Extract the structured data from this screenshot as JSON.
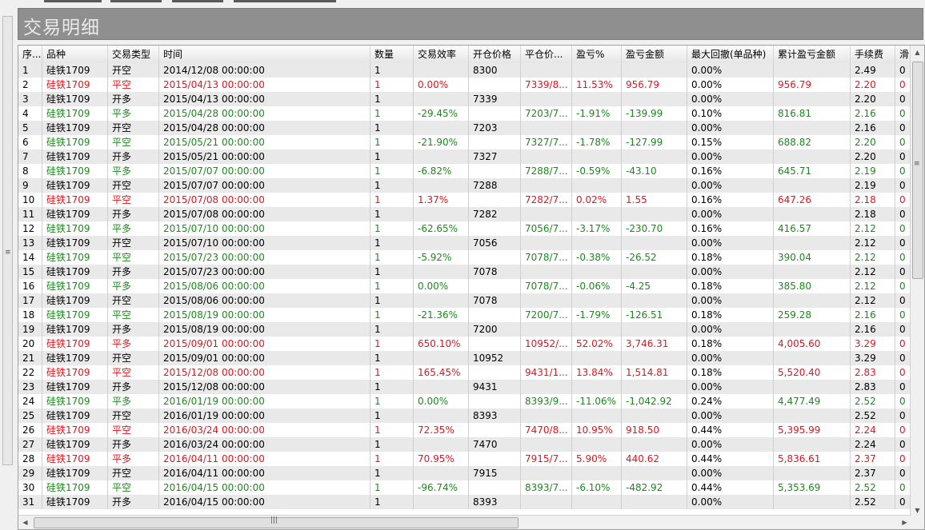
{
  "panel": {
    "title": "交易明细"
  },
  "columns": [
    {
      "key": "seq",
      "label": "序..."
    },
    {
      "key": "symbol",
      "label": "品种"
    },
    {
      "key": "type",
      "label": "交易类型"
    },
    {
      "key": "time",
      "label": "时间"
    },
    {
      "key": "qty",
      "label": "数量"
    },
    {
      "key": "efficiency",
      "label": "交易效率"
    },
    {
      "key": "open_price",
      "label": "开仓价格"
    },
    {
      "key": "close_price",
      "label": "平仓价..."
    },
    {
      "key": "pnl_pct",
      "label": "盈亏%"
    },
    {
      "key": "pnl_amt",
      "label": "盈亏金额"
    },
    {
      "key": "max_drawdown",
      "label": "最大回撤(单品种)"
    },
    {
      "key": "cum_pnl",
      "label": "累计盈亏金额"
    },
    {
      "key": "fee",
      "label": "手续费"
    },
    {
      "key": "slip",
      "label": "滑"
    }
  ],
  "rows": [
    {
      "seq": "1",
      "symbol": "硅铁1709",
      "type": "开空",
      "time": "2014/12/08 00:00:00",
      "qty": "1",
      "efficiency": "",
      "open_price": "8300",
      "close_price": "",
      "pnl_pct": "",
      "pnl_amt": "",
      "max_drawdown": "0.00%",
      "cum_pnl": "",
      "fee": "2.49",
      "slip": "0",
      "color": "black"
    },
    {
      "seq": "2",
      "symbol": "硅铁1709",
      "type": "平空",
      "time": "2015/04/13 00:00:00",
      "qty": "1",
      "efficiency": "0.00%",
      "open_price": "",
      "close_price": "7339/8...",
      "pnl_pct": "11.53%",
      "pnl_amt": "956.79",
      "max_drawdown": "0.00%",
      "cum_pnl": "956.79",
      "fee": "2.20",
      "slip": "0",
      "color": "red"
    },
    {
      "seq": "3",
      "symbol": "硅铁1709",
      "type": "开多",
      "time": "2015/04/13 00:00:00",
      "qty": "1",
      "efficiency": "",
      "open_price": "7339",
      "close_price": "",
      "pnl_pct": "",
      "pnl_amt": "",
      "max_drawdown": "0.00%",
      "cum_pnl": "",
      "fee": "2.20",
      "slip": "0",
      "color": "black"
    },
    {
      "seq": "4",
      "symbol": "硅铁1709",
      "type": "平多",
      "time": "2015/04/28 00:00:00",
      "qty": "1",
      "efficiency": "-29.45%",
      "open_price": "",
      "close_price": "7203/7...",
      "pnl_pct": "-1.91%",
      "pnl_amt": "-139.99",
      "max_drawdown": "0.10%",
      "cum_pnl": "816.81",
      "fee": "2.16",
      "slip": "0",
      "color": "green"
    },
    {
      "seq": "5",
      "symbol": "硅铁1709",
      "type": "开空",
      "time": "2015/04/28 00:00:00",
      "qty": "1",
      "efficiency": "",
      "open_price": "7203",
      "close_price": "",
      "pnl_pct": "",
      "pnl_amt": "",
      "max_drawdown": "0.00%",
      "cum_pnl": "",
      "fee": "2.16",
      "slip": "0",
      "color": "black"
    },
    {
      "seq": "6",
      "symbol": "硅铁1709",
      "type": "平空",
      "time": "2015/05/21 00:00:00",
      "qty": "1",
      "efficiency": "-21.90%",
      "open_price": "",
      "close_price": "7327/7...",
      "pnl_pct": "-1.78%",
      "pnl_amt": "-127.99",
      "max_drawdown": "0.15%",
      "cum_pnl": "688.82",
      "fee": "2.20",
      "slip": "0",
      "color": "green"
    },
    {
      "seq": "7",
      "symbol": "硅铁1709",
      "type": "开多",
      "time": "2015/05/21 00:00:00",
      "qty": "1",
      "efficiency": "",
      "open_price": "7327",
      "close_price": "",
      "pnl_pct": "",
      "pnl_amt": "",
      "max_drawdown": "0.00%",
      "cum_pnl": "",
      "fee": "2.20",
      "slip": "0",
      "color": "black"
    },
    {
      "seq": "8",
      "symbol": "硅铁1709",
      "type": "平多",
      "time": "2015/07/07 00:00:00",
      "qty": "1",
      "efficiency": "-6.82%",
      "open_price": "",
      "close_price": "7288/7...",
      "pnl_pct": "-0.59%",
      "pnl_amt": "-43.10",
      "max_drawdown": "0.16%",
      "cum_pnl": "645.71",
      "fee": "2.19",
      "slip": "0",
      "color": "green"
    },
    {
      "seq": "9",
      "symbol": "硅铁1709",
      "type": "开空",
      "time": "2015/07/07 00:00:00",
      "qty": "1",
      "efficiency": "",
      "open_price": "7288",
      "close_price": "",
      "pnl_pct": "",
      "pnl_amt": "",
      "max_drawdown": "0.00%",
      "cum_pnl": "",
      "fee": "2.19",
      "slip": "0",
      "color": "black"
    },
    {
      "seq": "10",
      "symbol": "硅铁1709",
      "type": "平空",
      "time": "2015/07/08 00:00:00",
      "qty": "1",
      "efficiency": "1.37%",
      "open_price": "",
      "close_price": "7282/7...",
      "pnl_pct": "0.02%",
      "pnl_amt": "1.55",
      "max_drawdown": "0.16%",
      "cum_pnl": "647.26",
      "fee": "2.18",
      "slip": "0",
      "color": "red"
    },
    {
      "seq": "11",
      "symbol": "硅铁1709",
      "type": "开多",
      "time": "2015/07/08 00:00:00",
      "qty": "1",
      "efficiency": "",
      "open_price": "7282",
      "close_price": "",
      "pnl_pct": "",
      "pnl_amt": "",
      "max_drawdown": "0.00%",
      "cum_pnl": "",
      "fee": "2.18",
      "slip": "0",
      "color": "black"
    },
    {
      "seq": "12",
      "symbol": "硅铁1709",
      "type": "平多",
      "time": "2015/07/10 00:00:00",
      "qty": "1",
      "efficiency": "-62.65%",
      "open_price": "",
      "close_price": "7056/7...",
      "pnl_pct": "-3.17%",
      "pnl_amt": "-230.70",
      "max_drawdown": "0.16%",
      "cum_pnl": "416.57",
      "fee": "2.12",
      "slip": "0",
      "color": "green"
    },
    {
      "seq": "13",
      "symbol": "硅铁1709",
      "type": "开空",
      "time": "2015/07/10 00:00:00",
      "qty": "1",
      "efficiency": "",
      "open_price": "7056",
      "close_price": "",
      "pnl_pct": "",
      "pnl_amt": "",
      "max_drawdown": "0.00%",
      "cum_pnl": "",
      "fee": "2.12",
      "slip": "0",
      "color": "black"
    },
    {
      "seq": "14",
      "symbol": "硅铁1709",
      "type": "平空",
      "time": "2015/07/23 00:00:00",
      "qty": "1",
      "efficiency": "-5.92%",
      "open_price": "",
      "close_price": "7078/7...",
      "pnl_pct": "-0.38%",
      "pnl_amt": "-26.52",
      "max_drawdown": "0.18%",
      "cum_pnl": "390.04",
      "fee": "2.12",
      "slip": "0",
      "color": "green"
    },
    {
      "seq": "15",
      "symbol": "硅铁1709",
      "type": "开多",
      "time": "2015/07/23 00:00:00",
      "qty": "1",
      "efficiency": "",
      "open_price": "7078",
      "close_price": "",
      "pnl_pct": "",
      "pnl_amt": "",
      "max_drawdown": "0.00%",
      "cum_pnl": "",
      "fee": "2.12",
      "slip": "0",
      "color": "black"
    },
    {
      "seq": "16",
      "symbol": "硅铁1709",
      "type": "平多",
      "time": "2015/08/06 00:00:00",
      "qty": "1",
      "efficiency": "0.00%",
      "open_price": "",
      "close_price": "7078/7...",
      "pnl_pct": "-0.06%",
      "pnl_amt": "-4.25",
      "max_drawdown": "0.18%",
      "cum_pnl": "385.80",
      "fee": "2.12",
      "slip": "0",
      "color": "green"
    },
    {
      "seq": "17",
      "symbol": "硅铁1709",
      "type": "开空",
      "time": "2015/08/06 00:00:00",
      "qty": "1",
      "efficiency": "",
      "open_price": "7078",
      "close_price": "",
      "pnl_pct": "",
      "pnl_amt": "",
      "max_drawdown": "0.00%",
      "cum_pnl": "",
      "fee": "2.12",
      "slip": "0",
      "color": "black"
    },
    {
      "seq": "18",
      "symbol": "硅铁1709",
      "type": "平空",
      "time": "2015/08/19 00:00:00",
      "qty": "1",
      "efficiency": "-21.36%",
      "open_price": "",
      "close_price": "7200/7...",
      "pnl_pct": "-1.79%",
      "pnl_amt": "-126.51",
      "max_drawdown": "0.18%",
      "cum_pnl": "259.28",
      "fee": "2.16",
      "slip": "0",
      "color": "green"
    },
    {
      "seq": "19",
      "symbol": "硅铁1709",
      "type": "开多",
      "time": "2015/08/19 00:00:00",
      "qty": "1",
      "efficiency": "",
      "open_price": "7200",
      "close_price": "",
      "pnl_pct": "",
      "pnl_amt": "",
      "max_drawdown": "0.00%",
      "cum_pnl": "",
      "fee": "2.16",
      "slip": "0",
      "color": "black"
    },
    {
      "seq": "20",
      "symbol": "硅铁1709",
      "type": "平多",
      "time": "2015/09/01 00:00:00",
      "qty": "1",
      "efficiency": "650.10%",
      "open_price": "",
      "close_price": "10952/...",
      "pnl_pct": "52.02%",
      "pnl_amt": "3,746.31",
      "max_drawdown": "0.18%",
      "cum_pnl": "4,005.60",
      "fee": "3.29",
      "slip": "0",
      "color": "red"
    },
    {
      "seq": "21",
      "symbol": "硅铁1709",
      "type": "开空",
      "time": "2015/09/01 00:00:00",
      "qty": "1",
      "efficiency": "",
      "open_price": "10952",
      "close_price": "",
      "pnl_pct": "",
      "pnl_amt": "",
      "max_drawdown": "0.00%",
      "cum_pnl": "",
      "fee": "3.29",
      "slip": "0",
      "color": "black"
    },
    {
      "seq": "22",
      "symbol": "硅铁1709",
      "type": "平空",
      "time": "2015/12/08 00:00:00",
      "qty": "1",
      "efficiency": "165.45%",
      "open_price": "",
      "close_price": "9431/1...",
      "pnl_pct": "13.84%",
      "pnl_amt": "1,514.81",
      "max_drawdown": "0.18%",
      "cum_pnl": "5,520.40",
      "fee": "2.83",
      "slip": "0",
      "color": "red"
    },
    {
      "seq": "23",
      "symbol": "硅铁1709",
      "type": "开多",
      "time": "2015/12/08 00:00:00",
      "qty": "1",
      "efficiency": "",
      "open_price": "9431",
      "close_price": "",
      "pnl_pct": "",
      "pnl_amt": "",
      "max_drawdown": "0.00%",
      "cum_pnl": "",
      "fee": "2.83",
      "slip": "0",
      "color": "black"
    },
    {
      "seq": "24",
      "symbol": "硅铁1709",
      "type": "平多",
      "time": "2016/01/19 00:00:00",
      "qty": "1",
      "efficiency": "0.00%",
      "open_price": "",
      "close_price": "8393/9...",
      "pnl_pct": "-11.06%",
      "pnl_amt": "-1,042.92",
      "max_drawdown": "0.24%",
      "cum_pnl": "4,477.49",
      "fee": "2.52",
      "slip": "0",
      "color": "green"
    },
    {
      "seq": "25",
      "symbol": "硅铁1709",
      "type": "开空",
      "time": "2016/01/19 00:00:00",
      "qty": "1",
      "efficiency": "",
      "open_price": "8393",
      "close_price": "",
      "pnl_pct": "",
      "pnl_amt": "",
      "max_drawdown": "0.00%",
      "cum_pnl": "",
      "fee": "2.52",
      "slip": "0",
      "color": "black"
    },
    {
      "seq": "26",
      "symbol": "硅铁1709",
      "type": "平空",
      "time": "2016/03/24 00:00:00",
      "qty": "1",
      "efficiency": "72.35%",
      "open_price": "",
      "close_price": "7470/8...",
      "pnl_pct": "10.95%",
      "pnl_amt": "918.50",
      "max_drawdown": "0.44%",
      "cum_pnl": "5,395.99",
      "fee": "2.24",
      "slip": "0",
      "color": "red"
    },
    {
      "seq": "27",
      "symbol": "硅铁1709",
      "type": "开多",
      "time": "2016/03/24 00:00:00",
      "qty": "1",
      "efficiency": "",
      "open_price": "7470",
      "close_price": "",
      "pnl_pct": "",
      "pnl_amt": "",
      "max_drawdown": "0.00%",
      "cum_pnl": "",
      "fee": "2.24",
      "slip": "0",
      "color": "black"
    },
    {
      "seq": "28",
      "symbol": "硅铁1709",
      "type": "平多",
      "time": "2016/04/11 00:00:00",
      "qty": "1",
      "efficiency": "70.95%",
      "open_price": "",
      "close_price": "7915/7...",
      "pnl_pct": "5.90%",
      "pnl_amt": "440.62",
      "max_drawdown": "0.44%",
      "cum_pnl": "5,836.61",
      "fee": "2.37",
      "slip": "0",
      "color": "red"
    },
    {
      "seq": "29",
      "symbol": "硅铁1709",
      "type": "开空",
      "time": "2016/04/11 00:00:00",
      "qty": "1",
      "efficiency": "",
      "open_price": "7915",
      "close_price": "",
      "pnl_pct": "",
      "pnl_amt": "",
      "max_drawdown": "0.00%",
      "cum_pnl": "",
      "fee": "2.37",
      "slip": "0",
      "color": "black"
    },
    {
      "seq": "30",
      "symbol": "硅铁1709",
      "type": "平空",
      "time": "2016/04/15 00:00:00",
      "qty": "1",
      "efficiency": "-96.74%",
      "open_price": "",
      "close_price": "8393/7...",
      "pnl_pct": "-6.10%",
      "pnl_amt": "-482.92",
      "max_drawdown": "0.44%",
      "cum_pnl": "5,353.69",
      "fee": "2.52",
      "slip": "0",
      "color": "green"
    },
    {
      "seq": "31",
      "symbol": "硅铁1709",
      "type": "开多",
      "time": "2016/04/15 00:00:00",
      "qty": "1",
      "efficiency": "",
      "open_price": "8393",
      "close_price": "",
      "pnl_pct": "",
      "pnl_amt": "",
      "max_drawdown": "0.00%",
      "cum_pnl": "",
      "fee": "2.52",
      "slip": "0",
      "color": "black"
    }
  ],
  "colors": {
    "profit": "#e8121a",
    "loss": "#1b8a1b",
    "title_bar": "#8f8f8f"
  },
  "icons": {
    "scroll_up": "triangle-up-icon",
    "scroll_down": "triangle-down-icon",
    "scroll_left": "triangle-left-icon",
    "scroll_right": "triangle-right-icon"
  }
}
